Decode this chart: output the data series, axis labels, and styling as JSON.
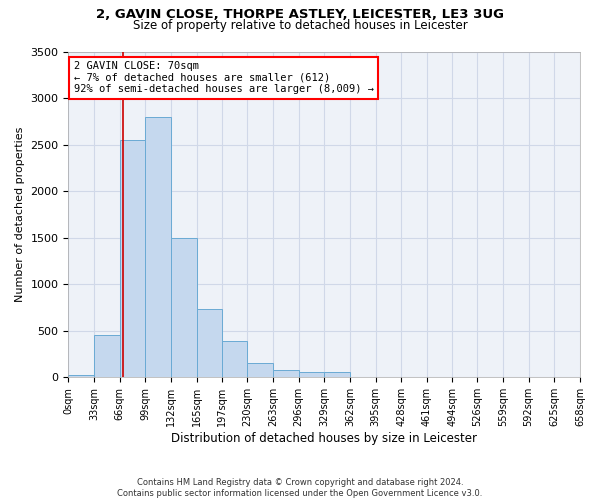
{
  "title1": "2, GAVIN CLOSE, THORPE ASTLEY, LEICESTER, LE3 3UG",
  "title2": "Size of property relative to detached houses in Leicester",
  "xlabel": "Distribution of detached houses by size in Leicester",
  "ylabel": "Number of detached properties",
  "annotation_line1": "2 GAVIN CLOSE: 70sqm",
  "annotation_line2": "← 7% of detached houses are smaller (612)",
  "annotation_line3": "92% of semi-detached houses are larger (8,009) →",
  "property_size": 70,
  "footer1": "Contains HM Land Registry data © Crown copyright and database right 2024.",
  "footer2": "Contains public sector information licensed under the Open Government Licence v3.0.",
  "bin_edges": [
    0,
    33,
    66,
    99,
    132,
    165,
    197,
    230,
    263,
    296,
    329,
    362,
    395,
    428,
    461,
    494,
    526,
    559,
    592,
    625,
    658
  ],
  "bar_heights": [
    30,
    450,
    2550,
    2800,
    1500,
    730,
    390,
    150,
    80,
    60,
    60,
    0,
    0,
    0,
    0,
    0,
    0,
    0,
    0,
    0
  ],
  "bar_color": "#c5d8ee",
  "bar_edge_color": "#6aaad4",
  "grid_color": "#d0d8e8",
  "background_color": "#eef2f8",
  "vline_color": "#cc0000",
  "ylim": [
    0,
    3500
  ],
  "yticks": [
    0,
    500,
    1000,
    1500,
    2000,
    2500,
    3000,
    3500
  ]
}
